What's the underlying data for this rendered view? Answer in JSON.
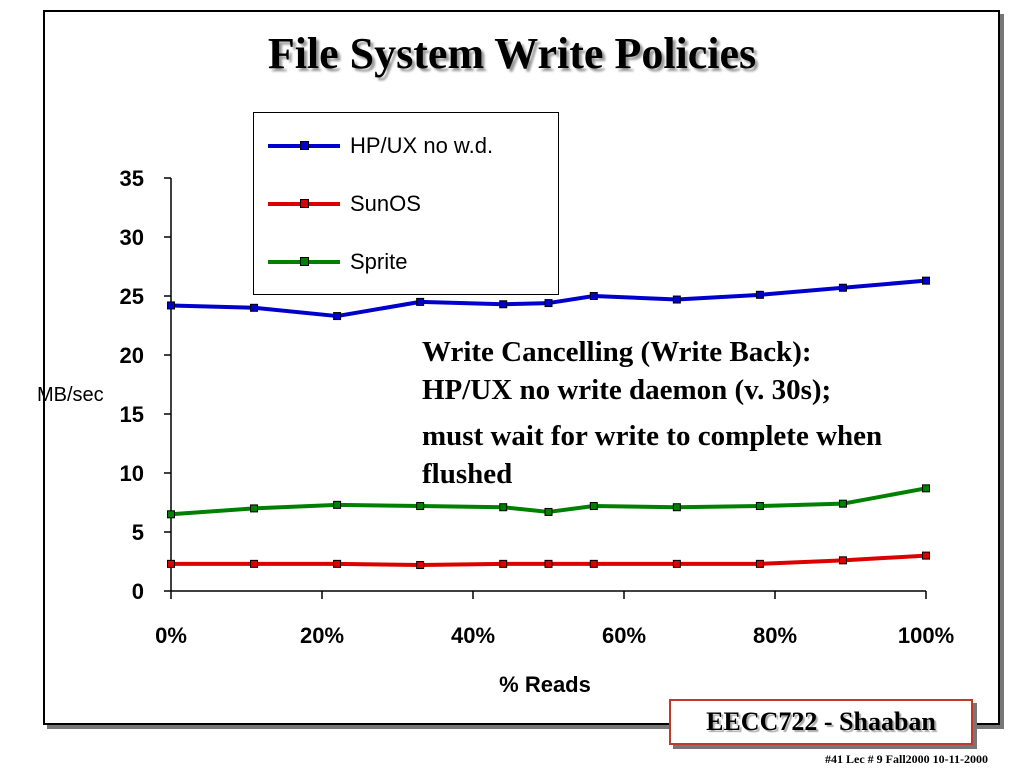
{
  "slide": {
    "title": "File System Write Policies",
    "annotation": {
      "line1": "Write Cancelling (Write Back):",
      "line2": "HP/UX no write daemon (v. 30s);",
      "line3": "must wait for write to complete when",
      "line4": "flushed"
    },
    "course_label": "EECC722 - Shaaban",
    "footer": "#41    Lec # 9    Fall2000  10-11-2000"
  },
  "chart_data": {
    "type": "line",
    "title": "",
    "xlabel": "% Reads",
    "ylabel": "MB/sec",
    "x": [
      0,
      11,
      22,
      33,
      44,
      50,
      56,
      67,
      78,
      89,
      100
    ],
    "x_ticks": [
      0,
      20,
      40,
      60,
      80,
      100
    ],
    "x_tick_labels": [
      "0%",
      "20%",
      "40%",
      "60%",
      "80%",
      "100%"
    ],
    "ylim": [
      0,
      35
    ],
    "y_ticks": [
      0,
      5,
      10,
      15,
      20,
      25,
      30,
      35
    ],
    "y_tick_labels": [
      "0",
      "5",
      "10",
      "15",
      "20",
      "25",
      "30",
      "35"
    ],
    "grid": false,
    "legend_position": "top-center",
    "series": [
      {
        "name": "HP/UX no w.d.",
        "color": "#0000cc",
        "values": [
          24.2,
          24.0,
          23.3,
          24.5,
          24.3,
          24.4,
          25.0,
          24.7,
          25.1,
          25.7,
          26.3
        ]
      },
      {
        "name": "SunOS",
        "color": "#dd0000",
        "values": [
          2.3,
          2.3,
          2.3,
          2.2,
          2.3,
          2.3,
          2.3,
          2.3,
          2.3,
          2.6,
          3.0
        ]
      },
      {
        "name": "Sprite",
        "color": "#008000",
        "values": [
          6.5,
          7.0,
          7.3,
          7.2,
          7.1,
          6.7,
          7.2,
          7.1,
          7.2,
          7.4,
          8.7
        ]
      }
    ]
  }
}
